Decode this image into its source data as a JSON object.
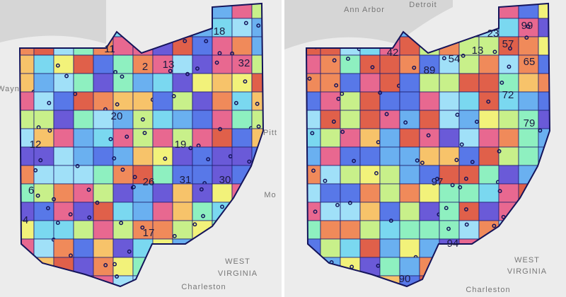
{
  "left_map": {
    "places": [
      "Wayn",
      "Pitt",
      "Mo",
      "WEST",
      "VIRGINIA",
      "Charleston"
    ],
    "districts": [
      "11",
      "18",
      "2",
      "13",
      "32",
      "20",
      "19",
      "31",
      "30",
      "6",
      "12",
      "4",
      "17",
      "26"
    ]
  },
  "right_map": {
    "places": [
      "Ann Arbor",
      "Detroit",
      "WEST",
      "VIRGINIA",
      "Charleston"
    ],
    "districts": [
      "42",
      "89",
      "54",
      "13",
      "23",
      "99",
      "57",
      "65",
      "72",
      "79",
      "90",
      "94",
      "97"
    ]
  }
}
